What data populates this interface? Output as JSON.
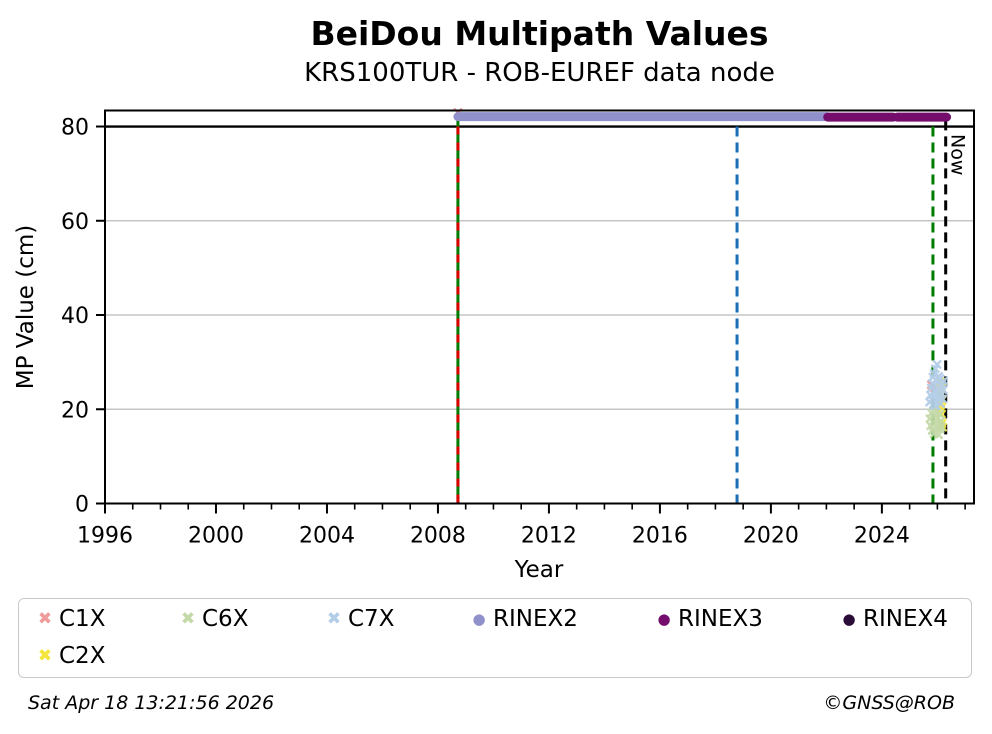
{
  "header": {
    "title": "BeiDou Multipath Values",
    "subtitle": "KRS100TUR - ROB-EUREF data node"
  },
  "footer": {
    "timestamp": "Sat Apr 18 13:21:56 2026",
    "credit": "©GNSS@ROB"
  },
  "chart_data": {
    "type": "scatter",
    "title": "BeiDou Multipath Values",
    "subtitle": "KRS100TUR - ROB-EUREF data node",
    "xlabel": "Year",
    "ylabel": "MP Value (cm)",
    "now_label": "Now",
    "xlim": [
      1996,
      2027.32
    ],
    "ylim": [
      0,
      83.4
    ],
    "xticks_major": [
      1996,
      2000,
      2004,
      2008,
      2012,
      2016,
      2020,
      2024
    ],
    "xticks_minor_step": 1,
    "yticks": [
      0,
      20,
      40,
      60,
      80
    ],
    "grid_y": [
      20,
      40,
      60,
      80
    ],
    "grid_color": "#c6c6c6",
    "legend_position": "bottom",
    "threshold_line": {
      "y": 80,
      "color": "#000000"
    },
    "vlines": [
      {
        "name": "data-start",
        "x": 2008.72,
        "y_top": 83.4,
        "y_bottom": 0,
        "style": "solid",
        "color": "#007d00",
        "overlay_dash_color": "#dd0000"
      },
      {
        "name": "event-2018",
        "x": 2018.78,
        "y_top": 80,
        "y_bottom": 0,
        "style": "dashed",
        "color": "#1b6db5"
      },
      {
        "name": "event-2025",
        "x": 2025.84,
        "y_top": 80,
        "y_bottom": 0,
        "style": "dashed",
        "color": "#007d00"
      },
      {
        "name": "now",
        "x": 2026.3,
        "y_top": 81.3,
        "y_bottom": 0,
        "style": "dashed",
        "color": "#000000",
        "label": "Now"
      }
    ],
    "bands": [
      {
        "name": "RINEX2",
        "y": 82.1,
        "color": "#9090ca",
        "segments": [
          [
            2008.72,
            2022.02
          ]
        ]
      },
      {
        "name": "RINEX3",
        "y": 82.0,
        "color": "#750d6c",
        "segments": [
          [
            2022.05,
            2024.4
          ],
          [
            2024.55,
            2026.33
          ]
        ]
      }
    ],
    "series": [
      {
        "name": "C1X",
        "marker": "x",
        "color": "#f09b9b",
        "points": [
          [
            2008.72,
            83.0
          ],
          [
            2025.78,
            25.2
          ],
          [
            2025.9,
            24.5
          ]
        ]
      },
      {
        "name": "C2X",
        "marker": "x",
        "color": "#f3e53a",
        "points": [
          [
            2026.1,
            25.8
          ],
          [
            2026.12,
            23.5
          ],
          [
            2026.13,
            21.0
          ],
          [
            2026.15,
            19.0
          ],
          [
            2026.16,
            24.5
          ],
          [
            2026.17,
            17.0
          ],
          [
            2026.18,
            22.0
          ],
          [
            2026.19,
            16.2
          ],
          [
            2026.14,
            20.2
          ]
        ]
      },
      {
        "name": "C6X",
        "marker": "x",
        "color": "#c3d9a8",
        "points": [
          [
            2025.73,
            18.0
          ],
          [
            2025.76,
            16.5
          ],
          [
            2025.79,
            19.2
          ],
          [
            2025.81,
            15.5
          ],
          [
            2025.83,
            17.3
          ],
          [
            2025.86,
            19.8
          ],
          [
            2025.88,
            14.8
          ],
          [
            2025.9,
            16.9
          ],
          [
            2025.92,
            18.6
          ],
          [
            2025.94,
            15.2
          ],
          [
            2025.96,
            17.8
          ],
          [
            2025.98,
            19.4
          ],
          [
            2026.0,
            16.1
          ],
          [
            2026.02,
            18.2
          ],
          [
            2026.04,
            14.6
          ],
          [
            2026.06,
            17.0
          ],
          [
            2026.08,
            19.0
          ],
          [
            2026.1,
            15.8
          ],
          [
            2026.12,
            17.5
          ],
          [
            2026.14,
            16.3
          ]
        ]
      },
      {
        "name": "C7X",
        "marker": "x",
        "color": "#b3cde8",
        "points": [
          [
            2025.72,
            21.5
          ],
          [
            2025.75,
            23.0
          ],
          [
            2025.78,
            24.5
          ],
          [
            2025.8,
            22.0
          ],
          [
            2025.82,
            25.5
          ],
          [
            2025.84,
            26.8
          ],
          [
            2025.85,
            21.0
          ],
          [
            2025.87,
            23.8
          ],
          [
            2025.88,
            27.5
          ],
          [
            2025.9,
            22.6
          ],
          [
            2025.91,
            25.0
          ],
          [
            2025.93,
            28.6
          ],
          [
            2025.94,
            20.8
          ],
          [
            2025.95,
            24.0
          ],
          [
            2025.96,
            26.2
          ],
          [
            2025.98,
            22.4
          ],
          [
            2025.99,
            29.5
          ],
          [
            2026.0,
            23.4
          ],
          [
            2026.02,
            25.8
          ],
          [
            2026.03,
            21.8
          ],
          [
            2026.05,
            27.0
          ],
          [
            2026.06,
            24.3
          ],
          [
            2026.08,
            22.9
          ],
          [
            2026.1,
            26.5
          ],
          [
            2026.11,
            21.2
          ],
          [
            2026.13,
            24.9
          ],
          [
            2026.15,
            23.2
          ],
          [
            2026.17,
            25.4
          ],
          [
            2026.19,
            22.2
          ],
          [
            2026.21,
            24.1
          ],
          [
            2026.23,
            26.0
          ]
        ]
      }
    ],
    "legend": {
      "items": [
        {
          "label": "C1X",
          "marker": "x",
          "color": "#f09b9b"
        },
        {
          "label": "C6X",
          "marker": "x",
          "color": "#c3d9a8"
        },
        {
          "label": "C7X",
          "marker": "x",
          "color": "#b3cde8"
        },
        {
          "label": "RINEX2",
          "marker": "dot",
          "color": "#9090ca"
        },
        {
          "label": "RINEX3",
          "marker": "dot",
          "color": "#750d6c"
        },
        {
          "label": "RINEX4",
          "marker": "dot",
          "color": "#2b0b38"
        },
        {
          "label": "C2X",
          "marker": "x",
          "color": "#f3e53a"
        }
      ]
    }
  }
}
